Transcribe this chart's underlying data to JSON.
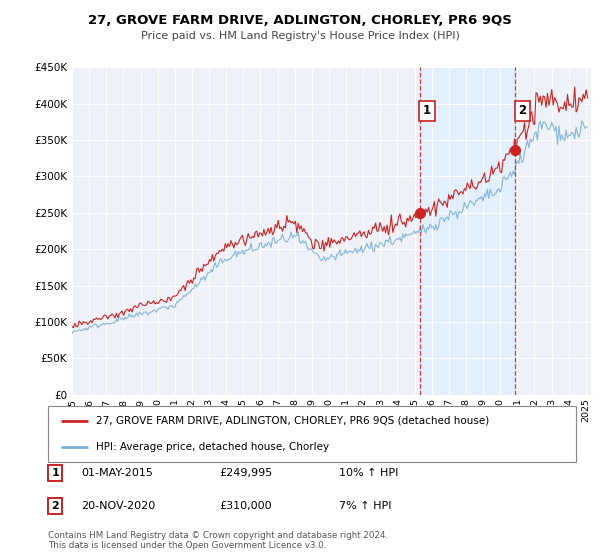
{
  "title": "27, GROVE FARM DRIVE, ADLINGTON, CHORLEY, PR6 9QS",
  "subtitle": "Price paid vs. HM Land Registry's House Price Index (HPI)",
  "red_label": "27, GROVE FARM DRIVE, ADLINGTON, CHORLEY, PR6 9QS (detached house)",
  "blue_label": "HPI: Average price, detached house, Chorley",
  "transaction1": {
    "num": "1",
    "date": "01-MAY-2015",
    "price": "£249,995",
    "change": "10% ↑ HPI"
  },
  "transaction2": {
    "num": "2",
    "date": "20-NOV-2020",
    "price": "£310,000",
    "change": "7% ↑ HPI"
  },
  "footer": "Contains HM Land Registry data © Crown copyright and database right 2024.\nThis data is licensed under the Open Government Licence v3.0.",
  "hpi_line_color": "#7bafd4",
  "price_line_color": "#cc2222",
  "vline_color": "#cc2222",
  "shade_color": "#ddeeff",
  "background_color": "#ffffff",
  "plot_bg_color": "#eef2f8",
  "ylim": [
    0,
    450000
  ],
  "yticks": [
    0,
    50000,
    100000,
    150000,
    200000,
    250000,
    300000,
    350000,
    400000,
    450000
  ],
  "year_start": 1995,
  "year_end": 2025,
  "t1_year": 2015.33,
  "t2_year": 2020.89,
  "t1_price": 249995,
  "t2_price": 310000
}
